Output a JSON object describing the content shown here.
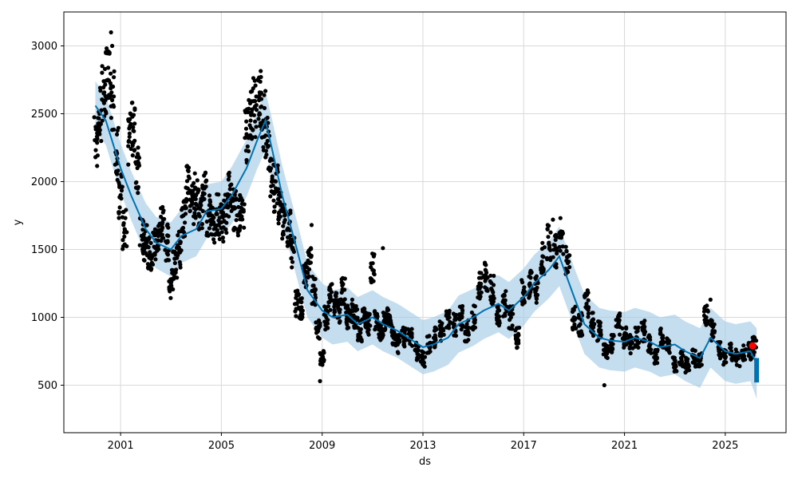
{
  "chart_data": {
    "type": "line",
    "title": "",
    "xlabel": "ds",
    "ylabel": "y",
    "xlim": [
      "1998-10-01",
      "2027-06-01"
    ],
    "ylim": [
      150,
      3250
    ],
    "x_ticks": [
      "2001",
      "2005",
      "2009",
      "2013",
      "2017",
      "2021",
      "2025"
    ],
    "y_ticks": [
      500,
      1000,
      1500,
      2000,
      2500,
      3000
    ],
    "grid": true,
    "legend": "none",
    "colors": {
      "observed": "#000000",
      "forecast_line": "#0072B2",
      "uncertainty_band": "#a6cde6",
      "highlight": "#ff0000",
      "grid": "#d9d9d9"
    },
    "series": [
      {
        "name": "",
        "role": "observed",
        "x": [
          "2000-01-15",
          "2000-03-01",
          "2000-05-01",
          "2000-07-01",
          "2000-09-01",
          "2000-11-01",
          "2001-01-01",
          "2001-03-01",
          "2001-05-01",
          "2001-07-01",
          "2001-09-01",
          "2001-11-01",
          "2002-01-01",
          "2002-03-01",
          "2002-05-01",
          "2002-07-01",
          "2002-09-01",
          "2002-11-01",
          "2003-01-01",
          "2003-03-01",
          "2003-05-01",
          "2003-07-01",
          "2003-09-01",
          "2003-11-01",
          "2004-01-01",
          "2004-03-01",
          "2004-05-01",
          "2004-07-01",
          "2004-09-01",
          "2004-11-01",
          "2005-01-01",
          "2005-03-01",
          "2005-05-01",
          "2005-07-01",
          "2005-09-01",
          "2005-11-01",
          "2006-01-01",
          "2006-03-01",
          "2006-05-01",
          "2006-07-01",
          "2006-09-01",
          "2006-11-01",
          "2007-01-01",
          "2007-03-01",
          "2007-05-01",
          "2007-07-01",
          "2007-09-01",
          "2007-11-01",
          "2008-01-01",
          "2008-03-01",
          "2008-05-01",
          "2008-07-01",
          "2008-09-01",
          "2008-11-01",
          "2009-01-01",
          "2009-03-01",
          "2009-05-01",
          "2009-07-01",
          "2009-09-01",
          "2009-11-01",
          "2010-01-01",
          "2010-03-01",
          "2010-05-01",
          "2010-07-01",
          "2010-09-01",
          "2010-11-01",
          "2011-01-01",
          "2011-03-01",
          "2011-05-01",
          "2011-07-01",
          "2011-09-01",
          "2011-11-01",
          "2012-01-01",
          "2012-04-01",
          "2012-07-01",
          "2012-10-01",
          "2013-01-01",
          "2013-04-01",
          "2013-07-01",
          "2013-10-01",
          "2014-01-01",
          "2014-04-01",
          "2014-07-01",
          "2014-10-01",
          "2015-01-01",
          "2015-04-01",
          "2015-07-01",
          "2015-10-01",
          "2016-01-01",
          "2016-04-01",
          "2016-07-01",
          "2016-10-01",
          "2017-01-01",
          "2017-04-01",
          "2017-07-01",
          "2017-10-01",
          "2018-01-01",
          "2018-04-01",
          "2018-07-01",
          "2018-10-01",
          "2019-01-01",
          "2019-04-01",
          "2019-07-01",
          "2019-10-01",
          "2020-01-01",
          "2020-04-01",
          "2020-07-01",
          "2020-10-01",
          "2021-01-01",
          "2021-04-01",
          "2021-07-01",
          "2021-10-01",
          "2022-01-01",
          "2022-04-01",
          "2022-07-01",
          "2022-10-01",
          "2023-01-01",
          "2023-04-01",
          "2023-07-01",
          "2023-10-01",
          "2024-01-01",
          "2024-04-01",
          "2024-07-01",
          "2024-10-01",
          "2025-01-01",
          "2025-04-01",
          "2025-07-01",
          "2025-10-01",
          "2026-01-01",
          "2026-03-01"
        ],
        "values": [
          2300,
          2500,
          2650,
          2750,
          2600,
          2200,
          1900,
          1650,
          2300,
          2400,
          2100,
          1600,
          1550,
          1480,
          1520,
          1600,
          1700,
          1550,
          1250,
          1400,
          1500,
          1750,
          1950,
          1850,
          1900,
          1800,
          1950,
          1750,
          1700,
          1760,
          1700,
          1750,
          1900,
          1800,
          1750,
          1780,
          2350,
          2450,
          2550,
          2600,
          2450,
          2300,
          2000,
          1950,
          1850,
          1700,
          1650,
          1500,
          1100,
          1050,
          1300,
          1400,
          1200,
          900,
          700,
          1000,
          1150,
          1100,
          1050,
          1200,
          1000,
          1050,
          1000,
          900,
          1000,
          950,
          1350,
          1000,
          900,
          950,
          1000,
          850,
          800,
          850,
          850,
          750,
          700,
          800,
          850,
          900,
          1000,
          950,
          1000,
          900,
          1000,
          1250,
          1300,
          1200,
          1000,
          1100,
          1000,
          850,
          1200,
          1250,
          1200,
          1450,
          1550,
          1500,
          1600,
          1400,
          1000,
          950,
          1100,
          950,
          900,
          750,
          800,
          950,
          850,
          800,
          850,
          900,
          800,
          700,
          850,
          800,
          650,
          700,
          650,
          700,
          700,
          1000,
          900,
          750,
          700,
          750,
          700,
          750,
          750,
          790
        ],
        "extra_points": [
          {
            "x": "2000-08-15",
            "y": 3100
          },
          {
            "x": "2000-09-01",
            "y": 3000
          },
          {
            "x": "2001-06-15",
            "y": 2580
          },
          {
            "x": "2008-08-01",
            "y": 1680
          },
          {
            "x": "2008-12-01",
            "y": 530
          },
          {
            "x": "2011-06-01",
            "y": 1510
          },
          {
            "x": "2020-03-15",
            "y": 500
          },
          {
            "x": "2024-06-01",
            "y": 1130
          },
          {
            "x": "2018-03-01",
            "y": 1720
          }
        ]
      },
      {
        "name": "",
        "role": "forecast",
        "x": [
          "2000-01-01",
          "2000-06-01",
          "2001-01-01",
          "2001-06-01",
          "2002-01-01",
          "2002-06-01",
          "2003-01-01",
          "2003-06-01",
          "2004-01-01",
          "2004-06-01",
          "2005-01-01",
          "2005-06-01",
          "2006-01-01",
          "2006-06-01",
          "2006-10-01",
          "2007-01-01",
          "2007-06-01",
          "2008-01-01",
          "2008-06-01",
          "2009-01-01",
          "2009-06-01",
          "2010-01-01",
          "2010-06-01",
          "2011-01-01",
          "2011-06-01",
          "2012-01-01",
          "2012-06-01",
          "2013-01-01",
          "2013-06-01",
          "2014-01-01",
          "2014-06-01",
          "2015-01-01",
          "2015-06-01",
          "2016-01-01",
          "2016-06-01",
          "2017-01-01",
          "2017-06-01",
          "2018-01-01",
          "2018-06-01",
          "2019-01-01",
          "2019-06-01",
          "2020-01-01",
          "2020-06-01",
          "2021-01-01",
          "2021-06-01",
          "2022-01-01",
          "2022-06-01",
          "2023-01-01",
          "2023-06-01",
          "2024-01-01",
          "2024-06-01",
          "2025-01-01",
          "2025-06-01",
          "2026-01-01",
          "2026-04-01"
        ],
        "values": [
          2560,
          2450,
          2100,
          1900,
          1650,
          1550,
          1500,
          1600,
          1650,
          1780,
          1800,
          1900,
          2100,
          2300,
          2450,
          2250,
          1900,
          1500,
          1200,
          1050,
          1000,
          1020,
          950,
          1000,
          950,
          900,
          850,
          780,
          800,
          850,
          950,
          1000,
          1050,
          1100,
          1050,
          1150,
          1250,
          1350,
          1450,
          1150,
          950,
          850,
          830,
          820,
          850,
          820,
          780,
          800,
          750,
          700,
          850,
          750,
          730,
          750,
          660
        ],
        "band_width": [
          180,
          180,
          180,
          180,
          190,
          190,
          200,
          200,
          200,
          200,
          200,
          210,
          210,
          210,
          220,
          220,
          220,
          210,
          200,
          200,
          200,
          200,
          200,
          200,
          200,
          200,
          200,
          200,
          200,
          200,
          210,
          210,
          210,
          210,
          210,
          210,
          210,
          210,
          220,
          220,
          220,
          220,
          220,
          220,
          220,
          220,
          220,
          220,
          220,
          220,
          220,
          220,
          220,
          220,
          260
        ]
      }
    ],
    "highlight_point": {
      "x": "2026-02-01",
      "y": 790
    }
  }
}
